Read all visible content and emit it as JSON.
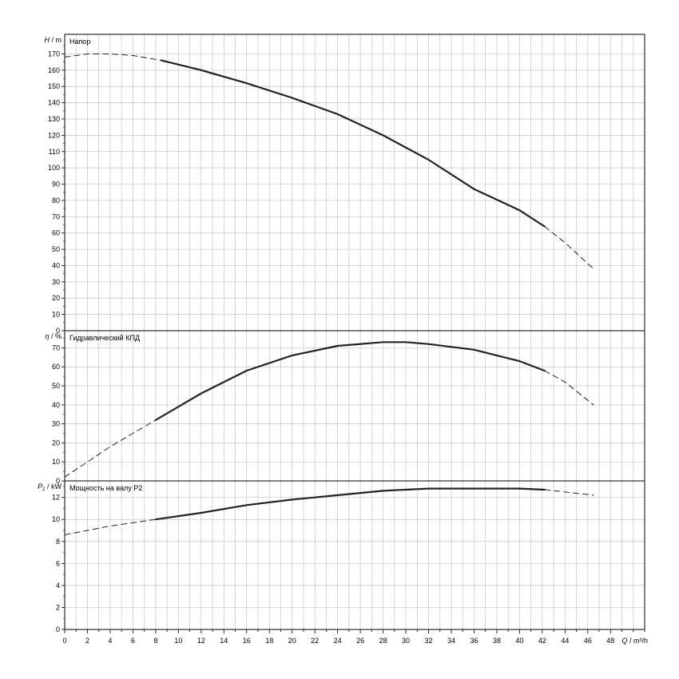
{
  "chart_data": [
    {
      "type": "line",
      "title": "Напор",
      "ylabel_symbol": "H",
      "ylabel_unit": " / m",
      "ylim": [
        0,
        182
      ],
      "xlim": [
        0,
        51
      ],
      "yticks": [
        0,
        10,
        20,
        30,
        40,
        50,
        60,
        70,
        80,
        90,
        100,
        110,
        120,
        130,
        140,
        150,
        160,
        170
      ],
      "series": [
        {
          "style": "dashed",
          "x": [
            0,
            2,
            4,
            6,
            8.5
          ],
          "y": [
            168,
            170,
            170,
            169,
            166
          ]
        },
        {
          "style": "solid",
          "x": [
            8.5,
            12,
            16,
            20,
            24,
            28,
            32,
            36,
            40,
            42.2
          ],
          "y": [
            166,
            160,
            152,
            143,
            133,
            120,
            105,
            87,
            74,
            64
          ]
        },
        {
          "style": "dashed",
          "x": [
            42.2,
            44,
            46.5
          ],
          "y": [
            64,
            54,
            38
          ]
        }
      ]
    },
    {
      "type": "line",
      "title": "Гидравлический КПД",
      "ylabel_symbol": "η",
      "ylabel_unit": " / %",
      "ylim": [
        0,
        79
      ],
      "xlim": [
        0,
        51
      ],
      "yticks": [
        0,
        10,
        20,
        30,
        40,
        50,
        60,
        70
      ],
      "series": [
        {
          "style": "dashed",
          "x": [
            0,
            2,
            4,
            6,
            8
          ],
          "y": [
            2,
            10,
            18,
            25,
            32
          ]
        },
        {
          "style": "solid",
          "x": [
            8,
            12,
            16,
            20,
            24,
            28,
            30,
            32,
            36,
            40,
            42.2
          ],
          "y": [
            32,
            46,
            58,
            66,
            71,
            73,
            73,
            72,
            69,
            63,
            58
          ]
        },
        {
          "style": "dashed",
          "x": [
            42.2,
            44,
            46.5
          ],
          "y": [
            58,
            52,
            40
          ]
        }
      ]
    },
    {
      "type": "line",
      "title": "Мощность на валу P2",
      "ylabel_symbol": "P",
      "ylabel_sub": "2",
      "ylabel_unit": " / kW",
      "ylim": [
        0,
        13.5
      ],
      "xlim": [
        0,
        51
      ],
      "yticks": [
        0,
        2,
        4,
        6,
        8,
        10,
        12
      ],
      "xlabel_symbol": "Q",
      "xlabel_unit": " / m³/h",
      "xticks": [
        0,
        2,
        4,
        6,
        8,
        10,
        12,
        14,
        16,
        18,
        20,
        22,
        24,
        26,
        28,
        30,
        32,
        34,
        36,
        38,
        40,
        42,
        44,
        46,
        48
      ],
      "series": [
        {
          "style": "dashed",
          "x": [
            0,
            4,
            8
          ],
          "y": [
            8.6,
            9.4,
            10.0
          ]
        },
        {
          "style": "solid",
          "x": [
            8,
            12,
            16,
            20,
            24,
            28,
            32,
            36,
            40,
            42.2
          ],
          "y": [
            10.0,
            10.6,
            11.3,
            11.8,
            12.2,
            12.6,
            12.8,
            12.8,
            12.8,
            12.7
          ]
        },
        {
          "style": "dashed",
          "x": [
            42.2,
            46.5
          ],
          "y": [
            12.7,
            12.2
          ]
        }
      ]
    }
  ]
}
